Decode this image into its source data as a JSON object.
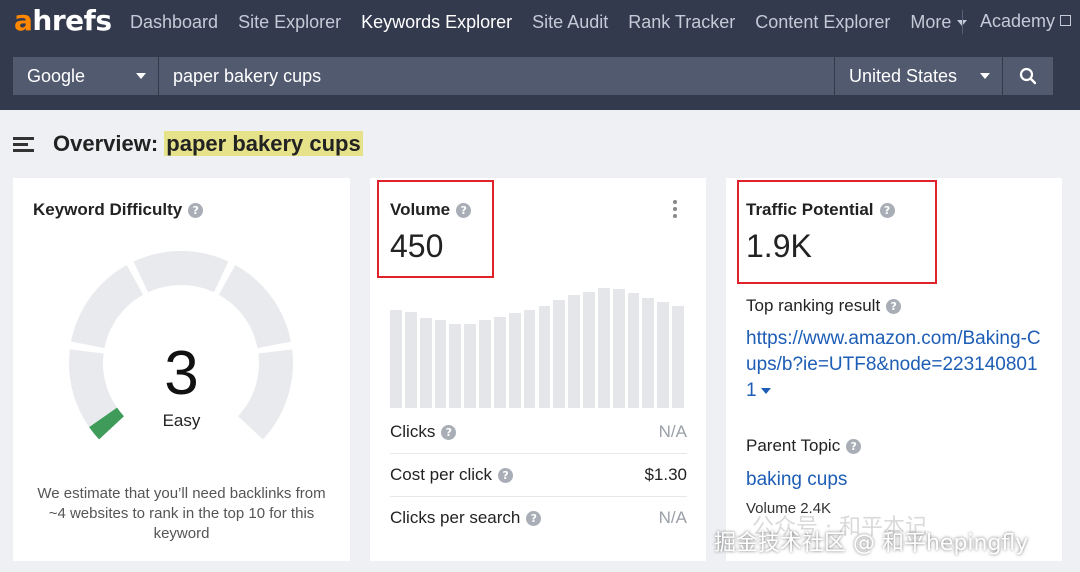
{
  "nav": {
    "logo_a": "a",
    "logo_rest": "hrefs",
    "items": [
      {
        "label": "Dashboard"
      },
      {
        "label": "Site Explorer"
      },
      {
        "label": "Keywords Explorer"
      },
      {
        "label": "Site Audit"
      },
      {
        "label": "Rank Tracker"
      },
      {
        "label": "Content Explorer"
      },
      {
        "label": "More"
      }
    ],
    "active_item": "Keywords Explorer",
    "academy": "Academy"
  },
  "search": {
    "engine": "Google",
    "query": "paper bakery cups",
    "country": "United States",
    "search_icon": "search-icon"
  },
  "overview": {
    "prefix": "Overview:",
    "keyword": "paper bakery cups"
  },
  "keyword_difficulty": {
    "title": "Keyword Difficulty",
    "value": "3",
    "value_fraction": 0.03,
    "label": "Easy",
    "note": "We estimate that you’ll need backlinks from ~4 websites to rank in the top 10 for this keyword"
  },
  "volume": {
    "title": "Volume",
    "value": "450",
    "trend_bars": [
      0.82,
      0.8,
      0.75,
      0.73,
      0.7,
      0.7,
      0.73,
      0.76,
      0.79,
      0.82,
      0.85,
      0.9,
      0.94,
      0.97,
      1.0,
      0.99,
      0.96,
      0.92,
      0.88,
      0.85
    ],
    "metrics": [
      {
        "label": "Clicks",
        "value": "N/A"
      },
      {
        "label": "Cost per click",
        "value": "$1.30"
      },
      {
        "label": "Clicks per search",
        "value": "N/A"
      }
    ]
  },
  "traffic_potential": {
    "title": "Traffic Potential",
    "value": "1.9K",
    "top_ranking_label": "Top ranking result",
    "top_ranking_url": "https://www.amazon.com/Baking-Cups/b?ie=UTF8&node=2231408011",
    "parent_topic_label": "Parent Topic",
    "parent_topic": "baking cups",
    "parent_volume": "Volume 2.4K"
  },
  "watermark": {
    "wechat": "公众号 · 和平本记",
    "text": "掘金技术社区 @ 和平hepingfly"
  },
  "colors": {
    "nav_bg": "#343a4e",
    "logo_accent": "#ff8800",
    "highlight": "#e6e28a",
    "link": "#1d5db5",
    "kd_easy": "#3f9b5a",
    "annotation_red": "#e0232a"
  }
}
